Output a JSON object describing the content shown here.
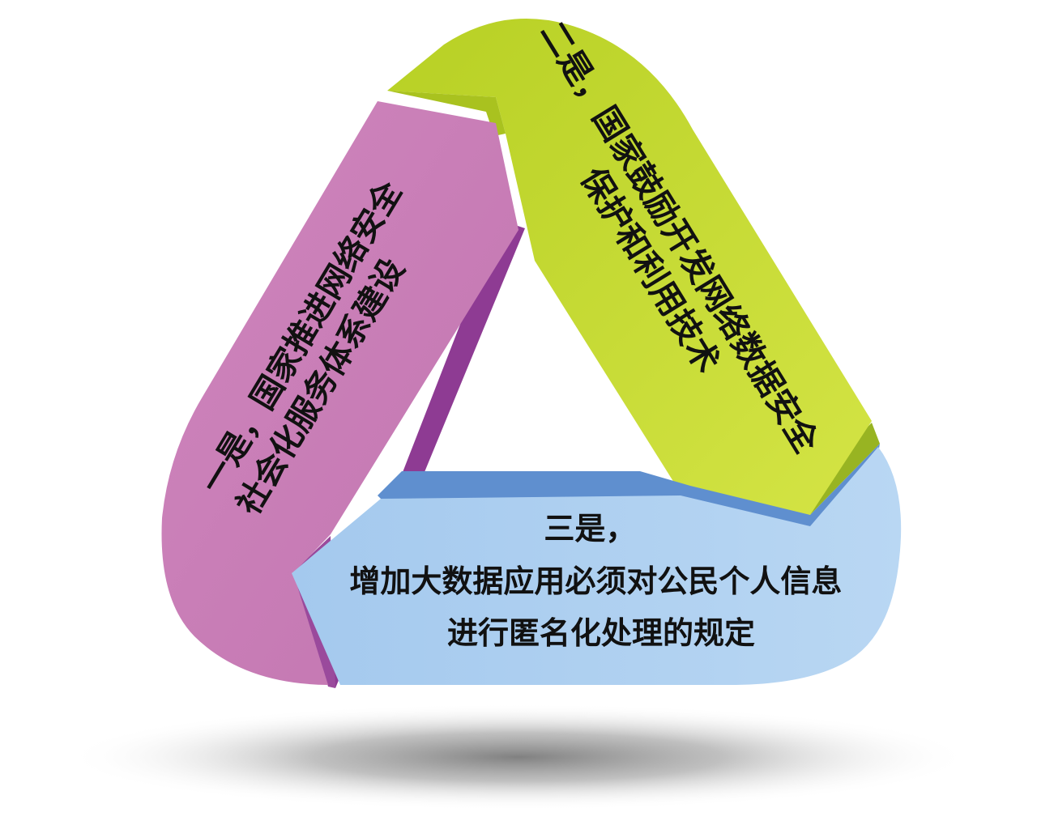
{
  "diagram": {
    "segments": [
      {
        "id": "one",
        "lines": [
          "一是，国家推进网络安全",
          "社会化服务体系建设"
        ],
        "colors": {
          "face": "#c97db5",
          "edge": "#8e3b93"
        }
      },
      {
        "id": "two",
        "lines": [
          "二是，国家鼓励开发网络数据安全",
          "保护和利用技术"
        ],
        "colors": {
          "face": "#c6dc2c",
          "edge": "#98b422"
        }
      },
      {
        "id": "three",
        "lines": [
          "三是，",
          "增加大数据应用必须对公民个人信息",
          "进行匿名化处理的规定"
        ],
        "colors": {
          "face": "#a9cdef",
          "edge": "#5f8fcf"
        }
      }
    ],
    "shadow_color": "#8a8a8a"
  }
}
